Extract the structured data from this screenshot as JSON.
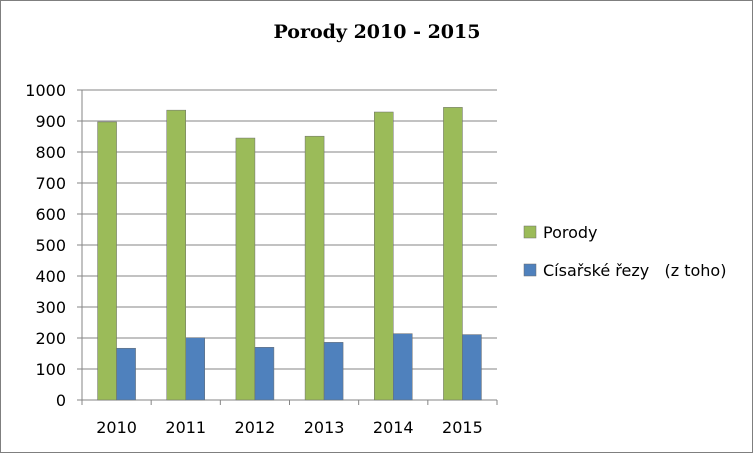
{
  "chart_data": {
    "type": "bar",
    "title": "Porody 2010 - 2015",
    "categories": [
      "2010",
      "2011",
      "2012",
      "2013",
      "2014",
      "2015"
    ],
    "series": [
      {
        "name": "Porody",
        "values": [
          897,
          935,
          845,
          851,
          929,
          944
        ],
        "color": "#9bbb59"
      },
      {
        "name": "Císařské řezy   (z toho)",
        "values": [
          167,
          201,
          170,
          186,
          214,
          211
        ],
        "color": "#4f81bd"
      }
    ],
    "ylim": [
      0,
      1000
    ],
    "yticks": [
      0,
      100,
      200,
      300,
      400,
      500,
      600,
      700,
      800,
      900,
      1000
    ],
    "grid": true,
    "legend": "right"
  }
}
